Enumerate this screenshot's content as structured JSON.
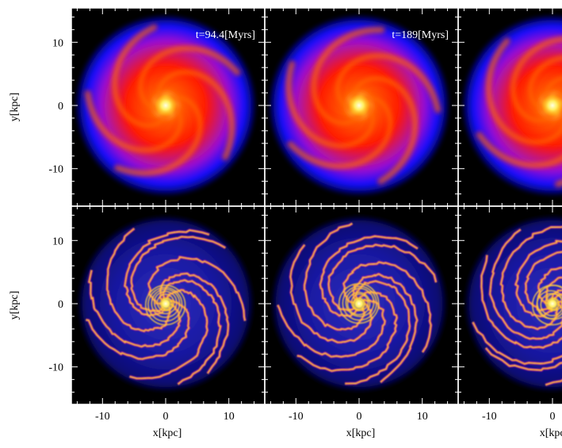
{
  "figure": {
    "panels": [
      {
        "id": "gas-top-1",
        "row": 0,
        "col": 0,
        "type": "smooth",
        "time_label": "t=94.4[Myrs]",
        "arm_twist": 3.2,
        "seed": 11
      },
      {
        "id": "gas-top-2",
        "row": 0,
        "col": 1,
        "type": "smooth",
        "time_label": "t=189[Myrs]",
        "arm_twist": 3.6,
        "seed": 23
      },
      {
        "id": "gas-top-3",
        "row": 0,
        "col": 2,
        "type": "smooth",
        "time_label": "",
        "arm_twist": 4.0,
        "seed": 37
      },
      {
        "id": "gas-bot-1",
        "row": 1,
        "col": 0,
        "type": "filament",
        "time_label": "",
        "arm_twist": 3.4,
        "seed": 51
      },
      {
        "id": "gas-bot-2",
        "row": 1,
        "col": 1,
        "type": "filament",
        "time_label": "",
        "arm_twist": 3.8,
        "seed": 67
      },
      {
        "id": "gas-bot-3",
        "row": 1,
        "col": 2,
        "type": "filament",
        "time_label": "",
        "arm_twist": 4.2,
        "seed": 83
      }
    ],
    "axes": {
      "xlabel": "x[kpc]",
      "ylabel": "y[kpc]",
      "range": [
        -15,
        15
      ],
      "major_ticks": [
        -10,
        0,
        10
      ],
      "tick_labels": [
        "-10",
        "0",
        "10"
      ]
    },
    "colors": {
      "background": "#000000",
      "outer": "#1010ff",
      "mid": "#ff1a00",
      "core": "#ffff90"
    }
  }
}
